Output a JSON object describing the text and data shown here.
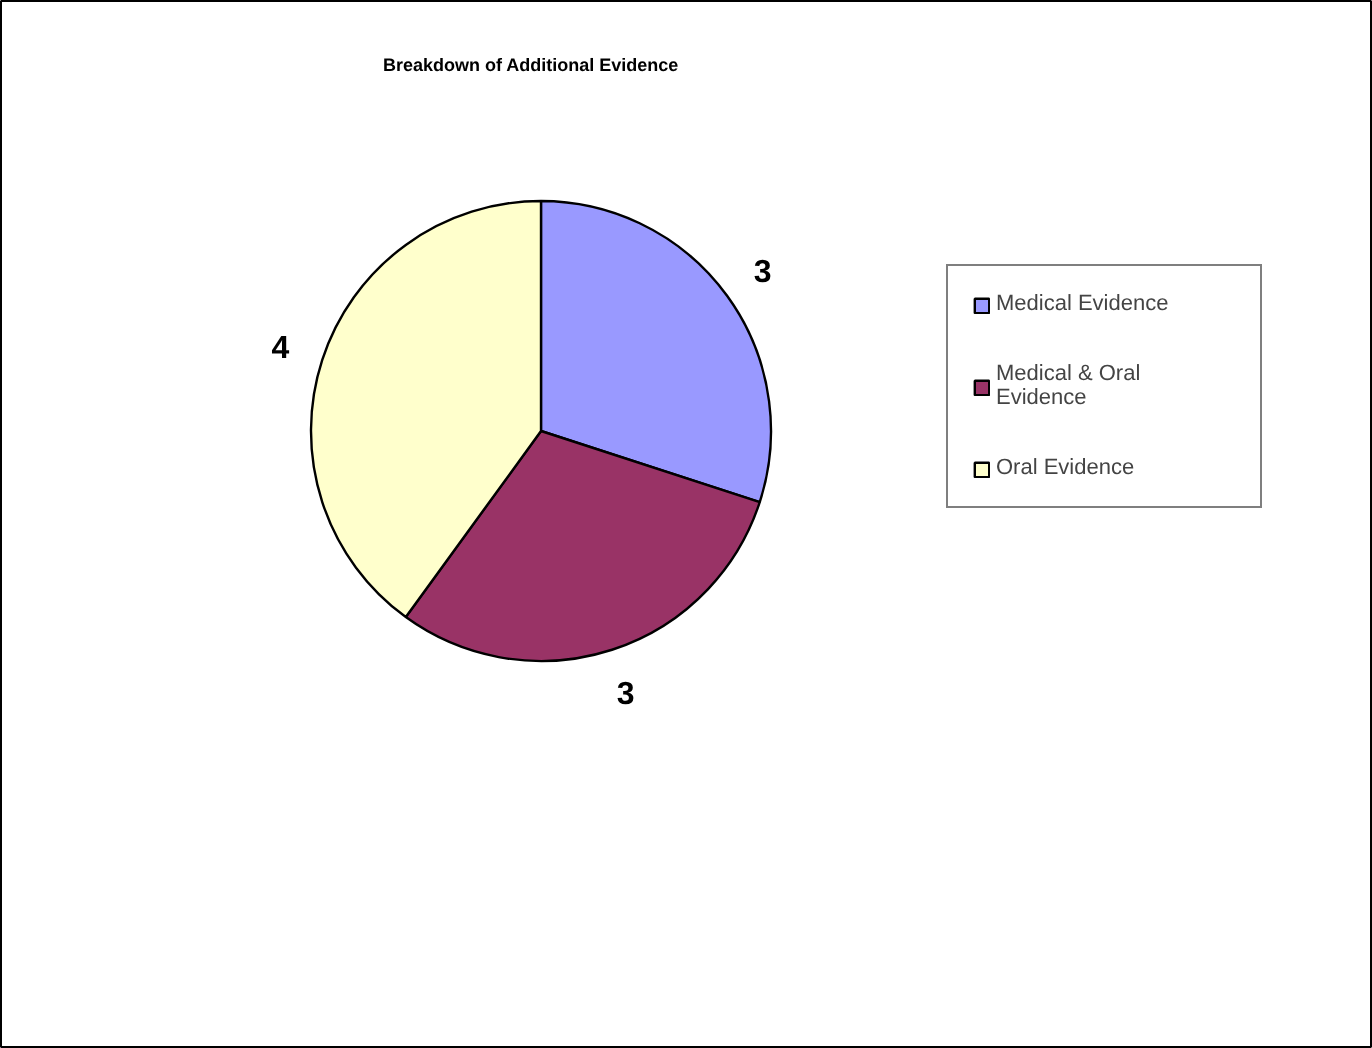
{
  "chart_data": {
    "type": "pie",
    "title": "Breakdown of Additional Evidence",
    "categories": [
      "Medical Evidence",
      "Medical & Oral Evidence",
      "Oral Evidence"
    ],
    "values": [
      3,
      3,
      4
    ],
    "colors": [
      "#9999ff",
      "#993366",
      "#ffffcc"
    ],
    "data_labels": true,
    "legend": "right"
  }
}
